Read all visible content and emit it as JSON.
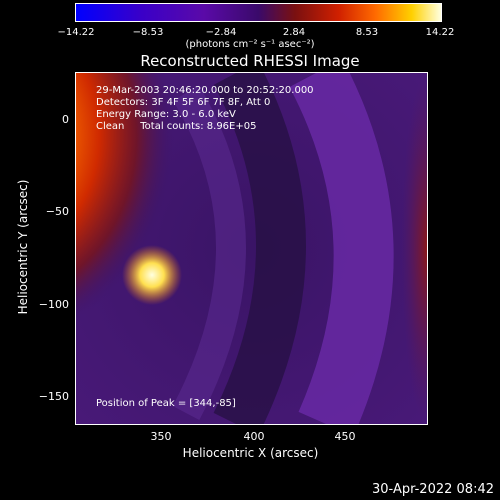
{
  "colorbar": {
    "ticks": [
      "−14.22",
      "−8.53",
      "−2.84",
      "2.84",
      "8.53",
      "14.22"
    ],
    "units": "(photons cm⁻² s⁻¹ asec⁻²)"
  },
  "title": "Reconstructed RHESSI Image",
  "info": {
    "line1": "29-Mar-2003 20:46:20.000 to 20:52:20.000",
    "line2": "Detectors: 3F 4F 5F 6F 7F 8F, Att 0",
    "line3": "Energy Range: 3.0 - 6.0 keV",
    "line4": "Clean     Total counts: 8.96E+05",
    "peak": "Position of Peak = [344,-85]"
  },
  "axes": {
    "xlabel": "Heliocentric X (arcsec)",
    "ylabel": "Heliocentric Y (arcsec)",
    "xticks": [
      "350",
      "400",
      "450"
    ],
    "yticks": [
      "0",
      "−50",
      "−100",
      "−150"
    ]
  },
  "timestamp": "30-Apr-2022 08:42"
}
